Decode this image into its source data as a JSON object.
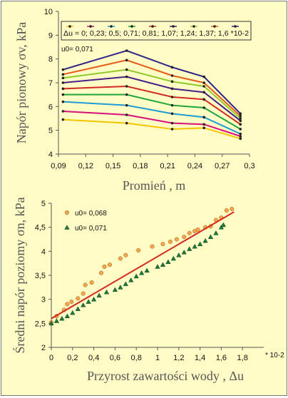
{
  "chart_data": [
    {
      "type": "line",
      "xlabel": "Promień , m",
      "ylabel": "Napór pionowy σv, kPa",
      "annotation": "u0= 0,071",
      "legend_text": "Δu = 0; 0,23; 0,5; 0,71; 0,81; 1,07; 1,24; 1,37; 1,6 *10-2",
      "xlim": [
        0.09,
        0.3
      ],
      "ylim": [
        4,
        10
      ],
      "xticks": [
        "0,09",
        "0,12",
        "0,15",
        "0,18",
        "0,21",
        "0,24",
        "0,27",
        "0,3"
      ],
      "yticks": [
        "4",
        "5",
        "6",
        "7",
        "8",
        "9",
        "10"
      ],
      "x": [
        0.095,
        0.165,
        0.215,
        0.25,
        0.29
      ],
      "series": [
        {
          "name": "0",
          "color": "#f5c400",
          "values": [
            5.45,
            5.3,
            5.05,
            5.1,
            4.65
          ]
        },
        {
          "name": "0,23",
          "color": "#d6107a",
          "values": [
            5.8,
            5.65,
            5.3,
            5.25,
            4.75
          ]
        },
        {
          "name": "0,5",
          "color": "#1e9bd7",
          "values": [
            6.2,
            6.05,
            5.7,
            5.55,
            4.85
          ]
        },
        {
          "name": "0,71",
          "color": "#1fa63a",
          "values": [
            6.5,
            6.5,
            6.05,
            5.95,
            5.05
          ]
        },
        {
          "name": "0,81",
          "color": "#d22a1e",
          "values": [
            6.75,
            6.85,
            6.4,
            6.3,
            5.25
          ]
        },
        {
          "name": "1,07",
          "color": "#4a1d8c",
          "values": [
            7.0,
            7.25,
            6.75,
            6.6,
            5.4
          ]
        },
        {
          "name": "1,24",
          "color": "#8fca2c",
          "values": [
            7.2,
            7.55,
            7.05,
            6.85,
            5.5
          ]
        },
        {
          "name": "1,37",
          "color": "#e85a1a",
          "values": [
            7.35,
            7.95,
            7.3,
            7.0,
            5.6
          ]
        },
        {
          "name": "1,6",
          "color": "#2e2387",
          "values": [
            7.55,
            8.35,
            7.65,
            7.25,
            5.7
          ]
        }
      ]
    },
    {
      "type": "scatter",
      "xlabel": "Przyrost zawartości wody ,  Δu",
      "ylabel": "Średni napór poziomy σn, kPa",
      "x_unit": "* 10-2",
      "xlim": [
        0,
        2
      ],
      "ylim": [
        2,
        5
      ],
      "xticks": [
        "0",
        "0,2",
        "0,4",
        "0,6",
        "0,8",
        "1",
        "1,2",
        "1,4",
        "1,6",
        "1,8"
      ],
      "yticks": [
        "2",
        "2,5",
        "3",
        "3,5",
        "4",
        "4,5",
        "5"
      ],
      "series": [
        {
          "name": "u0= 0,068",
          "marker": "circle",
          "color": "#f2a54a",
          "points": [
            [
              0.0,
              2.52
            ],
            [
              0.05,
              2.65
            ],
            [
              0.12,
              2.78
            ],
            [
              0.15,
              2.9
            ],
            [
              0.19,
              2.95
            ],
            [
              0.25,
              3.02
            ],
            [
              0.3,
              3.12
            ],
            [
              0.32,
              3.3
            ],
            [
              0.38,
              3.35
            ],
            [
              0.47,
              3.55
            ],
            [
              0.5,
              3.68
            ],
            [
              0.55,
              3.72
            ],
            [
              0.65,
              3.85
            ],
            [
              0.7,
              3.92
            ],
            [
              0.82,
              4.02
            ],
            [
              0.95,
              4.1
            ],
            [
              1.05,
              4.15
            ],
            [
              1.12,
              4.2
            ],
            [
              1.18,
              4.25
            ],
            [
              1.25,
              4.3
            ],
            [
              1.3,
              4.38
            ],
            [
              1.35,
              4.42
            ],
            [
              1.38,
              4.45
            ],
            [
              1.45,
              4.5
            ],
            [
              1.5,
              4.52
            ],
            [
              1.55,
              4.65
            ],
            [
              1.6,
              4.7
            ],
            [
              1.65,
              4.85
            ],
            [
              1.7,
              4.88
            ]
          ]
        },
        {
          "name": "u0= 0,071",
          "marker": "triangle",
          "color": "#1f7a3a",
          "points": [
            [
              0.0,
              2.5
            ],
            [
              0.05,
              2.55
            ],
            [
              0.1,
              2.6
            ],
            [
              0.15,
              2.65
            ],
            [
              0.2,
              2.72
            ],
            [
              0.25,
              2.8
            ],
            [
              0.3,
              2.88
            ],
            [
              0.35,
              2.95
            ],
            [
              0.4,
              3.0
            ],
            [
              0.45,
              3.08
            ],
            [
              0.52,
              3.15
            ],
            [
              0.6,
              3.2
            ],
            [
              0.65,
              3.25
            ],
            [
              0.7,
              3.32
            ],
            [
              0.75,
              3.4
            ],
            [
              0.8,
              3.48
            ],
            [
              0.85,
              3.55
            ],
            [
              0.9,
              3.6
            ],
            [
              1.0,
              3.68
            ],
            [
              1.05,
              3.72
            ],
            [
              1.1,
              3.78
            ],
            [
              1.15,
              3.85
            ],
            [
              1.2,
              3.92
            ],
            [
              1.25,
              3.98
            ],
            [
              1.3,
              4.05
            ],
            [
              1.35,
              4.1
            ],
            [
              1.4,
              4.15
            ],
            [
              1.45,
              4.22
            ],
            [
              1.5,
              4.3
            ],
            [
              1.55,
              4.38
            ],
            [
              1.6,
              4.5
            ],
            [
              1.62,
              4.55
            ]
          ]
        }
      ],
      "trendline": {
        "color": "#d22a1e",
        "from": [
          0.0,
          2.6
        ],
        "to": [
          1.72,
          4.82
        ]
      }
    }
  ]
}
